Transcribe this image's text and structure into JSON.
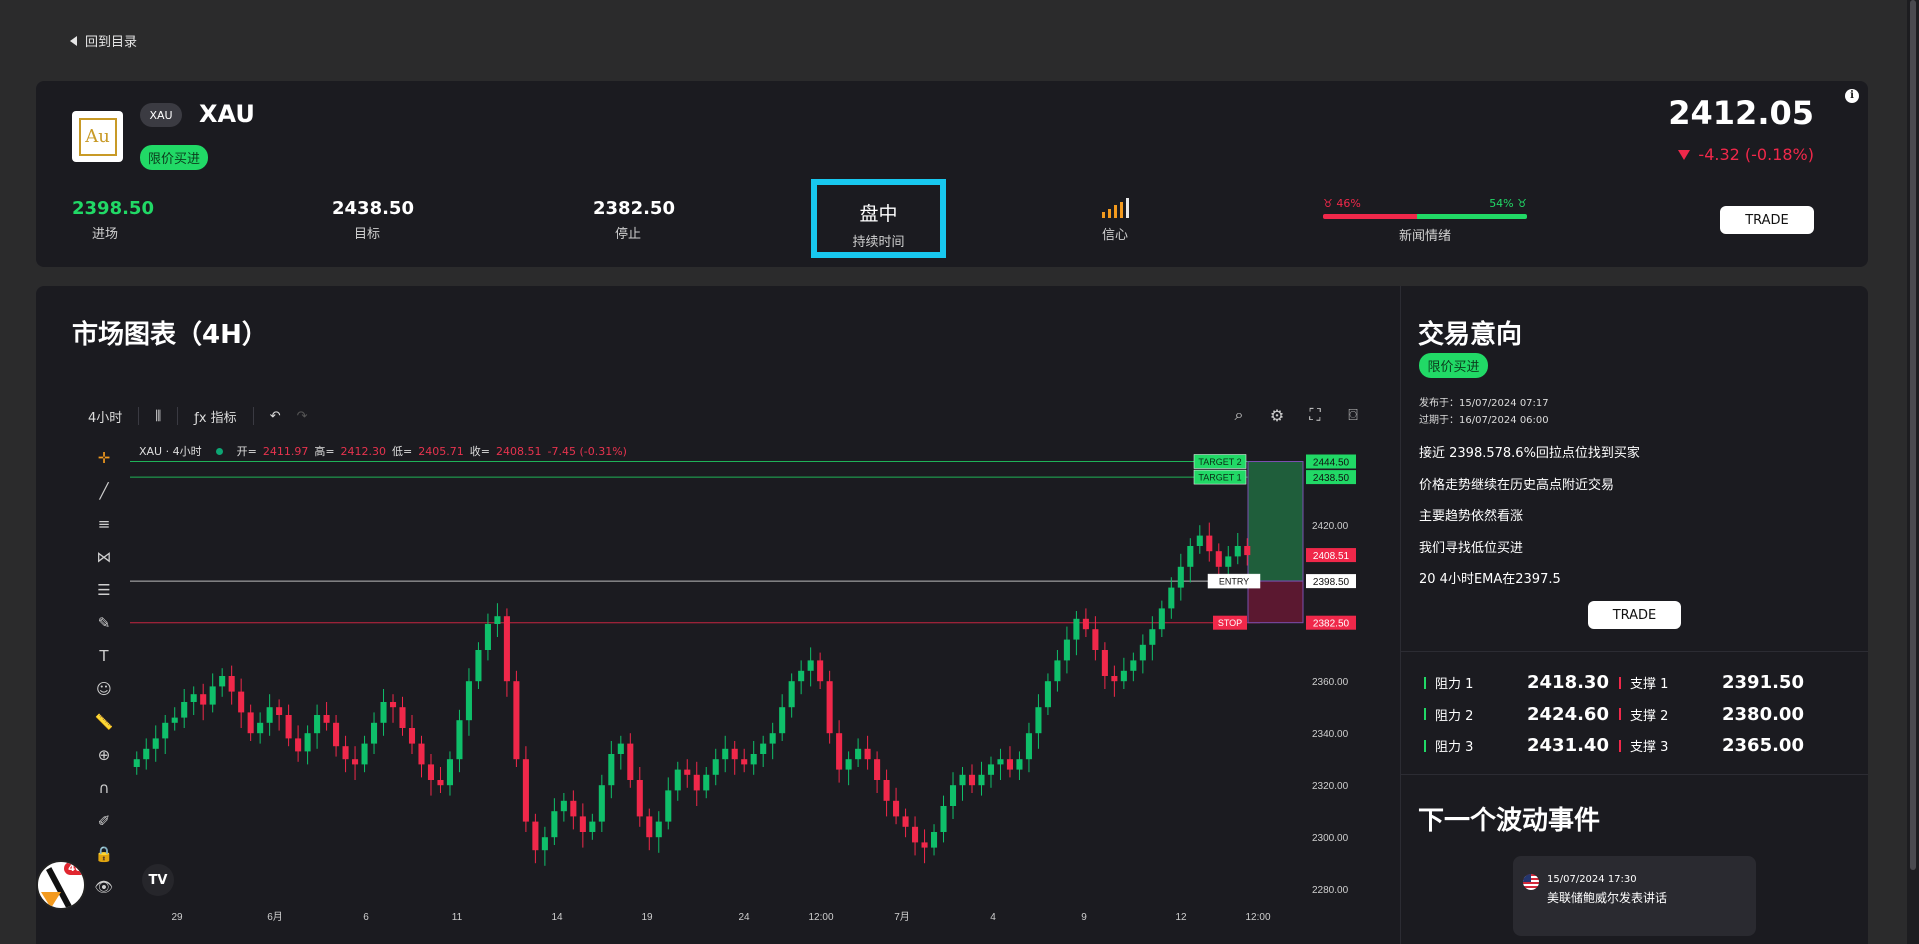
{
  "nav": {
    "back_label": "回到目录"
  },
  "asset": {
    "ticker": "XAU",
    "name": "XAU",
    "logo_text": "Au",
    "order_type": "限价买进",
    "price": "2412.05",
    "change": "-4.32 (-0.18%)"
  },
  "stats": {
    "entry": {
      "value": "2398.50",
      "label": "进场"
    },
    "target": {
      "value": "2438.50",
      "label": "目标"
    },
    "stop": {
      "value": "2382.50",
      "label": "停止"
    },
    "duration": {
      "value": "盘中",
      "label": "持续时间"
    },
    "confidence": {
      "label": "信心",
      "level": 4,
      "max": 5
    },
    "sentiment": {
      "negative": "46%",
      "positive": "54%",
      "label": "新闻情绪"
    },
    "trade_label": "TRADE"
  },
  "chart": {
    "title": "市场图表（4H）",
    "toolbar": {
      "interval": "4小时",
      "indicators": "指标"
    },
    "legend": {
      "symbol": "XAU · 4小时",
      "o_lbl": "开=",
      "o": "2411.97",
      "h_lbl": "高=",
      "h": "2412.30",
      "l_lbl": "低=",
      "l": "2405.71",
      "c_lbl": "收=",
      "c": "2408.51",
      "chg": "-7.45 (-0.31%)"
    },
    "logo_text": "TV",
    "notification_count": "46"
  },
  "chart_data": {
    "type": "candlestick",
    "y_ticks": [
      "2420.00",
      "2360.00",
      "2340.00",
      "2320.00",
      "2300.00",
      "2280.00"
    ],
    "x_ticks": [
      "29",
      "6月",
      "6",
      "11",
      "14",
      "19",
      "24",
      "12:00",
      "7月",
      "4",
      "9",
      "12",
      "12:00"
    ],
    "ylim": [
      2272,
      2452
    ],
    "price_labels": [
      {
        "text": "2444.50",
        "value": 2444.5,
        "kind": "target"
      },
      {
        "text": "2438.50",
        "value": 2438.5,
        "kind": "target"
      },
      {
        "text": "2408.51",
        "value": 2408.51,
        "kind": "last"
      },
      {
        "text": "2398.50",
        "value": 2398.5,
        "kind": "entry"
      },
      {
        "text": "2382.50",
        "value": 2382.5,
        "kind": "stop"
      }
    ],
    "markers": {
      "target2": "TARGET 2",
      "target1": "TARGET 1",
      "entry": "ENTRY",
      "stop": "STOP"
    },
    "closes": [
      2330,
      2334,
      2338,
      2344,
      2346,
      2352,
      2355,
      2351,
      2358,
      2362,
      2356,
      2348,
      2340,
      2344,
      2350,
      2347,
      2338,
      2333,
      2340,
      2347,
      2344,
      2335,
      2330,
      2328,
      2336,
      2344,
      2352,
      2350,
      2342,
      2336,
      2328,
      2322,
      2320,
      2330,
      2345,
      2360,
      2372,
      2382,
      2385,
      2360,
      2330,
      2306,
      2295,
      2300,
      2310,
      2314,
      2308,
      2302,
      2306,
      2320,
      2332,
      2336,
      2322,
      2308,
      2300,
      2306,
      2318,
      2326,
      2324,
      2318,
      2324,
      2330,
      2334,
      2330,
      2328,
      2332,
      2336,
      2340,
      2350,
      2360,
      2364,
      2368,
      2360,
      2340,
      2326,
      2330,
      2334,
      2330,
      2322,
      2314,
      2308,
      2304,
      2298,
      2296,
      2302,
      2312,
      2320,
      2324,
      2320,
      2324,
      2328,
      2330,
      2326,
      2330,
      2340,
      2350,
      2360,
      2368,
      2376,
      2384,
      2380,
      2372,
      2362,
      2360,
      2364,
      2368,
      2374,
      2380,
      2388,
      2396,
      2404,
      2412,
      2416,
      2410,
      2404,
      2408,
      2412,
      2408.5
    ]
  },
  "trade_idea": {
    "title": "交易意向",
    "order_type": "限价买进",
    "published": "发布于：15/07/2024 07:17",
    "expires": "过期于：16/07/2024 06:00",
    "notes": [
      "接近 2398.578.6%回拉点位找到买家",
      "价格走势继续在历史高点附近交易",
      "主要趋势依然看涨",
      "我们寻找低位买进",
      "20 4小时EMA在2397.5"
    ],
    "trade_label": "TRADE"
  },
  "levels": {
    "resistance": [
      {
        "label": "阻力 1",
        "value": "2418.30"
      },
      {
        "label": "阻力 2",
        "value": "2424.60"
      },
      {
        "label": "阻力 3",
        "value": "2431.40"
      }
    ],
    "support": [
      {
        "label": "支撑 1",
        "value": "2391.50"
      },
      {
        "label": "支撑 2",
        "value": "2380.00"
      },
      {
        "label": "支撑 3",
        "value": "2365.00"
      }
    ]
  },
  "event": {
    "title": "下一个波动事件",
    "date": "15/07/2024 17:30",
    "text": "美联储鲍威尔发表讲话"
  },
  "colors": {
    "green": "#21d966",
    "red": "#f0284a",
    "accent": "#18c8ef",
    "orange": "#f39a1e",
    "card": "#1b1b20"
  }
}
